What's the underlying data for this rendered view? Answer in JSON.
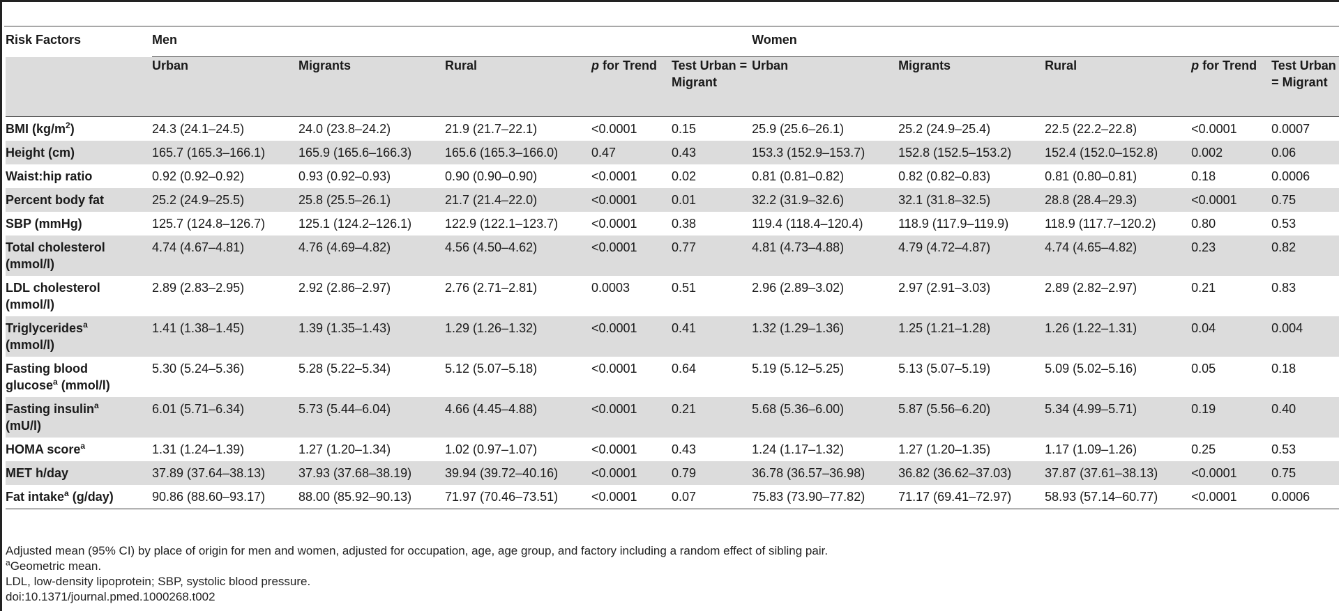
{
  "table": {
    "risk_factors_header": "Risk Factors",
    "groups": [
      "Men",
      "Women"
    ],
    "columns": {
      "urban": "Urban",
      "migrants": "Migrants",
      "rural": "Rural",
      "p_italic": "p",
      "p_rest": " for Trend",
      "test": "Test Urban = Migrant"
    },
    "rows": [
      {
        "label": "BMI (kg/m",
        "sup": "2",
        "label_after": ")",
        "men": [
          "24.3 (24.1–24.5)",
          "24.0 (23.8–24.2)",
          "21.9 (21.7–22.1)",
          "<0.0001",
          "0.15"
        ],
        "women": [
          "25.9 (25.6–26.1)",
          "25.2 (24.9–25.4)",
          "22.5 (22.2–22.8)",
          "<0.0001",
          "0.0007"
        ]
      },
      {
        "label": "Height (cm)",
        "sup": "",
        "label_after": "",
        "men": [
          "165.7 (165.3–166.1)",
          "165.9 (165.6–166.3)",
          "165.6 (165.3–166.0)",
          "0.47",
          "0.43"
        ],
        "women": [
          "153.3 (152.9–153.7)",
          "152.8 (152.5–153.2)",
          "152.4 (152.0–152.8)",
          "0.002",
          "0.06"
        ]
      },
      {
        "label": "Waist:hip ratio",
        "sup": "",
        "label_after": "",
        "men": [
          "0.92 (0.92–0.92)",
          "0.93 (0.92–0.93)",
          "0.90 (0.90–0.90)",
          "<0.0001",
          "0.02"
        ],
        "women": [
          "0.81 (0.81–0.82)",
          "0.82 (0.82–0.83)",
          "0.81 (0.80–0.81)",
          "0.18",
          "0.0006"
        ]
      },
      {
        "label": "Percent body fat",
        "sup": "",
        "label_after": "",
        "men": [
          "25.2 (24.9–25.5)",
          "25.8 (25.5–26.1)",
          "21.7 (21.4–22.0)",
          "<0.0001",
          "0.01"
        ],
        "women": [
          "32.2 (31.9–32.6)",
          "32.1 (31.8–32.5)",
          "28.8 (28.4–29.3)",
          "<0.0001",
          "0.75"
        ]
      },
      {
        "label": "SBP (mmHg)",
        "sup": "",
        "label_after": "",
        "men": [
          "125.7 (124.8–126.7)",
          "125.1 (124.2–126.1)",
          "122.9 (122.1–123.7)",
          "<0.0001",
          "0.38"
        ],
        "women": [
          "119.4 (118.4–120.4)",
          "118.9 (117.9–119.9)",
          "118.9 (117.7–120.2)",
          "0.80",
          "0.53"
        ]
      },
      {
        "label": "Total cholesterol",
        "sup": "",
        "label_after": "",
        "label2": "(mmol/l)",
        "men": [
          "4.74 (4.67–4.81)",
          "4.76 (4.69–4.82)",
          "4.56 (4.50–4.62)",
          "<0.0001",
          "0.77"
        ],
        "women": [
          "4.81 (4.73–4.88)",
          "4.79 (4.72–4.87)",
          "4.74 (4.65–4.82)",
          "0.23",
          "0.82"
        ]
      },
      {
        "label": "LDL cholesterol",
        "sup": "",
        "label_after": "",
        "label2": "(mmol/l)",
        "men": [
          "2.89 (2.83–2.95)",
          "2.92 (2.86–2.97)",
          "2.76 (2.71–2.81)",
          "0.0003",
          "0.51"
        ],
        "women": [
          "2.96 (2.89–3.02)",
          "2.97 (2.91–3.03)",
          "2.89 (2.82–2.97)",
          "0.21",
          "0.83"
        ]
      },
      {
        "label": "Triglycerides",
        "sup": "a",
        "label_after": "",
        "label2": "(mmol/l)",
        "men": [
          "1.41 (1.38–1.45)",
          "1.39 (1.35–1.43)",
          "1.29 (1.26–1.32)",
          "<0.0001",
          "0.41"
        ],
        "women": [
          "1.32 (1.29–1.36)",
          "1.25 (1.21–1.28)",
          "1.26 (1.22–1.31)",
          "0.04",
          "0.004"
        ]
      },
      {
        "label": "Fasting blood",
        "sup": "",
        "label_after": "",
        "label2_pre": "glucose",
        "label2_sup": "a",
        "label2": " (mmol/l)",
        "men": [
          "5.30 (5.24–5.36)",
          "5.28 (5.22–5.34)",
          "5.12 (5.07–5.18)",
          "<0.0001",
          "0.64"
        ],
        "women": [
          "5.19 (5.12–5.25)",
          "5.13 (5.07–5.19)",
          "5.09 (5.02–5.16)",
          "0.05",
          "0.18"
        ]
      },
      {
        "label": "Fasting insulin",
        "sup": "a",
        "label_after": "",
        "label2": "(mU/l)",
        "men": [
          "6.01 (5.71–6.34)",
          "5.73 (5.44–6.04)",
          "4.66 (4.45–4.88)",
          "<0.0001",
          "0.21"
        ],
        "women": [
          "5.68 (5.36–6.00)",
          "5.87 (5.56–6.20)",
          "5.34 (4.99–5.71)",
          "0.19",
          "0.40"
        ]
      },
      {
        "label": "HOMA score",
        "sup": "a",
        "label_after": "",
        "men": [
          "1.31 (1.24–1.39)",
          "1.27 (1.20–1.34)",
          "1.02 (0.97–1.07)",
          "<0.0001",
          "0.43"
        ],
        "women": [
          "1.24 (1.17–1.32)",
          "1.27 (1.20–1.35)",
          "1.17 (1.09–1.26)",
          "0.25",
          "0.53"
        ]
      },
      {
        "label": "MET h/day",
        "sup": "",
        "label_after": "",
        "men": [
          "37.89 (37.64–38.13)",
          "37.93 (37.68–38.19)",
          "39.94 (39.72–40.16)",
          "<0.0001",
          "0.79"
        ],
        "women": [
          "36.78 (36.57–36.98)",
          "36.82 (36.62–37.03)",
          "37.87 (37.61–38.13)",
          "<0.0001",
          "0.75"
        ]
      },
      {
        "label": "Fat intake",
        "sup": "a",
        "label_after": " (g/day)",
        "men": [
          "90.86 (88.60–93.17)",
          "88.00 (85.92–90.13)",
          "71.97 (70.46–73.51)",
          "<0.0001",
          "0.07"
        ],
        "women": [
          "75.83 (73.90–77.82)",
          "71.17 (69.41–72.97)",
          "58.93 (57.14–60.77)",
          "<0.0001",
          "0.0006"
        ]
      }
    ]
  },
  "footnotes": {
    "line1": "Adjusted mean (95% CI) by place of origin for men and women, adjusted for occupation, age, age group, and factory including a random effect of sibling pair.",
    "line2_sup": "a",
    "line2": "Geometric mean.",
    "line3": "LDL, low-density lipoprotein; SBP, systolic blood pressure.",
    "line4": "doi:10.1371/journal.pmed.1000268.t002"
  }
}
